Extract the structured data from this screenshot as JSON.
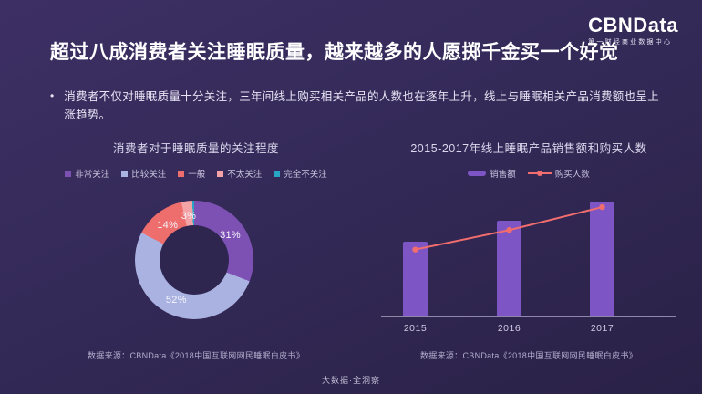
{
  "logo": {
    "brand": "CBNData",
    "subtitle": "第一财经商业数据中心"
  },
  "slide": {
    "title": "超过八成消费者关注睡眠质量，越来越多的人愿掷千金买一个好觉",
    "bullet_marker": "•",
    "bullet": "消费者不仅对睡眠质量十分关注，三年间线上购买相关产品的人数也在逐年上升，线上与睡眠相关产品消费额也呈上涨趋势。",
    "footer": "大数据·全洞察"
  },
  "colors": {
    "background_top": "#3d2f64",
    "background_bottom": "#2a2147",
    "axis": "#8f88ab",
    "bar_accent": "#7e55c4",
    "line_accent": "#f26d6d"
  },
  "chart_data": [
    {
      "type": "pie",
      "donut": true,
      "title": "消费者对于睡眠质量的关注程度",
      "legend_position": "top",
      "labels": [
        "非常关注",
        "比较关注",
        "一般",
        "不太关注",
        "完全不关注"
      ],
      "values": [
        31,
        52,
        14,
        3,
        0.5
      ],
      "data_labels": [
        "31%",
        "52%",
        "14%",
        "3%",
        ""
      ],
      "colors": [
        "#7d51b4",
        "#a9b2e1",
        "#ed6e6c",
        "#f4a3a6",
        "#27a5c2"
      ],
      "start_angle_deg": 0,
      "source": "数据来源：CBNData《2018中国互联网网民睡眠白皮书》"
    },
    {
      "type": "bar",
      "title": "2015-2017年线上睡眠产品销售额和购买人数",
      "categories": [
        "2015",
        "2016",
        "2017"
      ],
      "series": [
        {
          "name": "销售额",
          "type": "bar",
          "values": [
            65,
            83,
            100
          ],
          "color": "#7e55c4"
        },
        {
          "name": "购买人数",
          "type": "line",
          "values": [
            59,
            76,
            96
          ],
          "color": "#f26d6d"
        }
      ],
      "ylim": [
        0,
        110
      ],
      "y_axis_visible": false,
      "note": "y-axis unlabeled in source; values are relative units estimated from bar heights",
      "legend_position": "top",
      "source": "数据来源：CBNData《2018中国互联网网民睡眠白皮书》"
    }
  ]
}
